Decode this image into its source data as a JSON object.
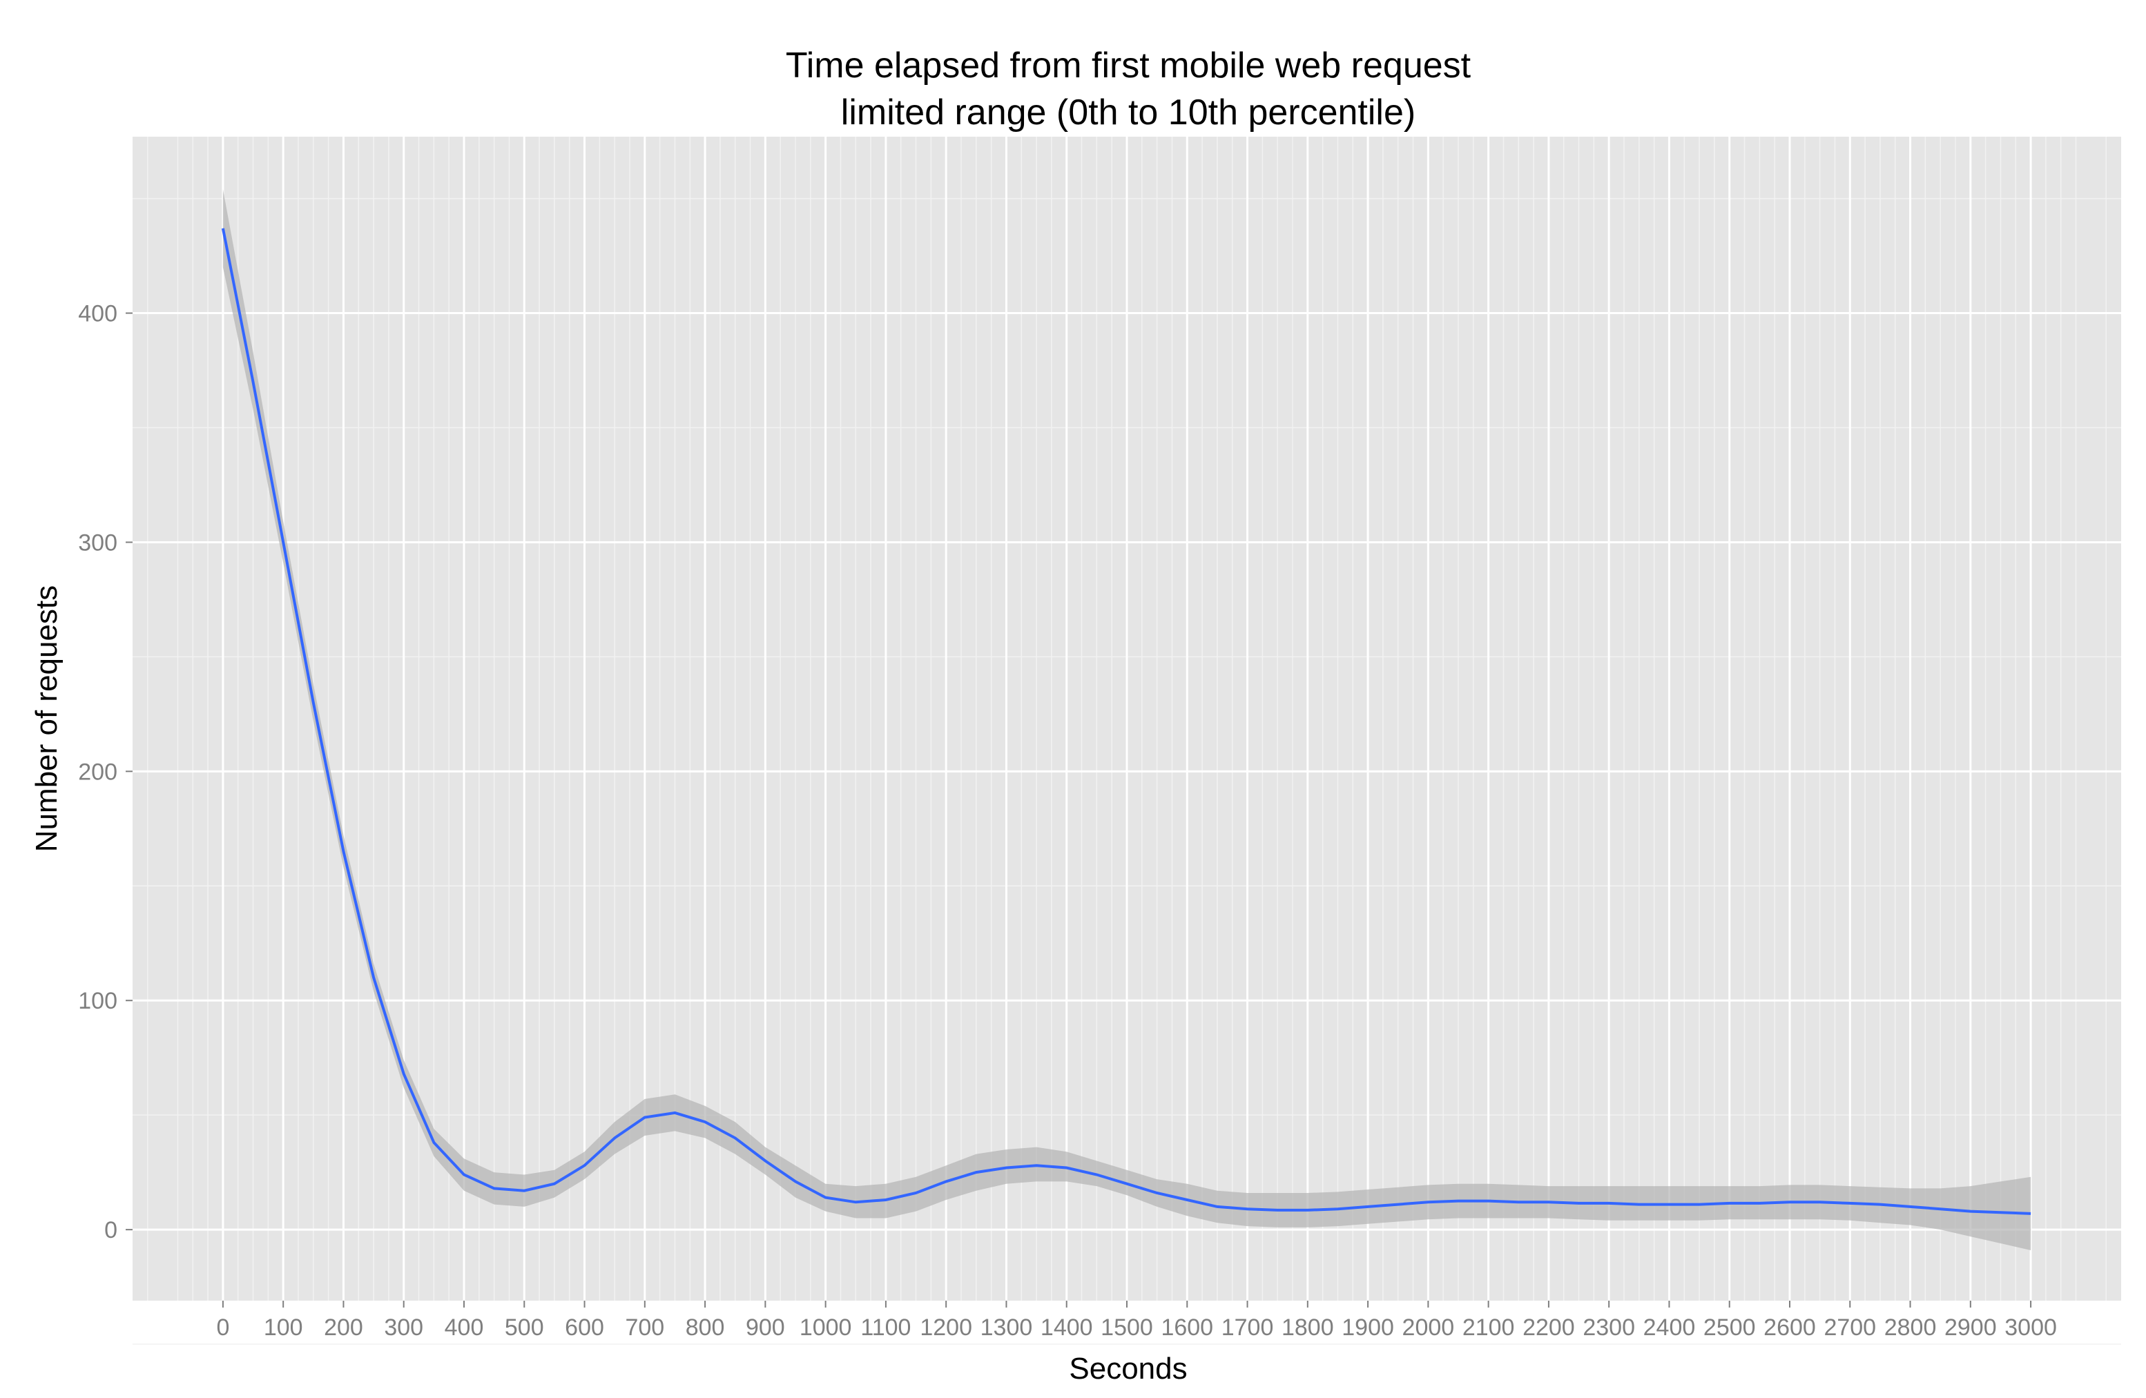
{
  "chart_data": {
    "type": "line",
    "title": "Time elapsed from first mobile web request",
    "subtitle": "limited range (0th to 10th percentile)",
    "xlabel": "Seconds",
    "ylabel": "Number of requests",
    "xlim": [
      -150,
      3150
    ],
    "ylim": [
      -31,
      477
    ],
    "x_ticks": [
      0,
      100,
      200,
      300,
      400,
      500,
      600,
      700,
      800,
      900,
      1000,
      1100,
      1200,
      1300,
      1400,
      1500,
      1600,
      1700,
      1800,
      1900,
      2000,
      2100,
      2200,
      2300,
      2400,
      2500,
      2600,
      2700,
      2800,
      2900,
      3000
    ],
    "x_tick_labels": [
      "0",
      "100",
      "200",
      "300",
      "400",
      "500",
      "600",
      "700",
      "800",
      "900",
      "1000",
      "1100",
      "1200",
      "1300",
      "1400",
      "1500",
      "1600",
      "1700",
      "1800",
      "1900",
      "2000",
      "2100",
      "2200",
      "2300",
      "2400",
      "2500",
      "2600",
      "2700",
      "2800",
      "2900",
      "3000"
    ],
    "y_ticks": [
      0,
      100,
      200,
      300,
      400
    ],
    "y_tick_labels": [
      "0",
      "100",
      "200",
      "300",
      "400"
    ],
    "grid": true,
    "colors": {
      "panel": "#e5e5e5",
      "grid": "#ffffff",
      "line": "#3366ff",
      "band": "#b3b3b3"
    },
    "series": [
      {
        "x": [
          0,
          50,
          100,
          150,
          200,
          250,
          300,
          350,
          400,
          450,
          500,
          550,
          600,
          650,
          700,
          750,
          800,
          850,
          900,
          950,
          1000,
          1050,
          1100,
          1150,
          1200,
          1250,
          1300,
          1350,
          1400,
          1450,
          1500,
          1550,
          1600,
          1650,
          1700,
          1750,
          1800,
          1850,
          1900,
          1950,
          2000,
          2050,
          2100,
          2150,
          2200,
          2250,
          2300,
          2350,
          2400,
          2450,
          2500,
          2550,
          2600,
          2650,
          2700,
          2750,
          2800,
          2850,
          2900,
          2950,
          3000
        ],
        "y": [
          437,
          370,
          300,
          230,
          165,
          110,
          68,
          38,
          24,
          18,
          17,
          20,
          28,
          40,
          49,
          51,
          47,
          40,
          30,
          21,
          14,
          12,
          13,
          16,
          21,
          25,
          27,
          28,
          27,
          24,
          20,
          16,
          13,
          10,
          9,
          8.5,
          8.5,
          9,
          10,
          11,
          12,
          12.5,
          12.5,
          12,
          12,
          11.5,
          11.5,
          11,
          11,
          11,
          11.5,
          11.5,
          12,
          12,
          11.5,
          11,
          10,
          9,
          8,
          7.5,
          7
        ],
        "lower": [
          420,
          358,
          291,
          222,
          158,
          104,
          62,
          32,
          17,
          11,
          10,
          14,
          22,
          33,
          41,
          43,
          40,
          33,
          24,
          14,
          8,
          5,
          5,
          8,
          13,
          17,
          20,
          21,
          21,
          19,
          15,
          10,
          6,
          3,
          1.5,
          1,
          1,
          1.5,
          2.5,
          3.5,
          4.5,
          5,
          5,
          5,
          5,
          4.5,
          4,
          4,
          4,
          4,
          4.5,
          4.5,
          4.5,
          4.5,
          4,
          3,
          2,
          0,
          -3,
          -6,
          -9
        ],
        "upper": [
          454,
          383,
          309,
          238,
          172,
          116,
          74,
          44,
          31,
          25,
          24,
          26,
          34,
          47,
          57,
          59,
          54,
          47,
          36,
          28,
          20,
          19,
          20,
          23,
          28,
          33,
          35,
          36,
          34,
          30,
          26,
          22,
          20,
          17,
          16,
          16,
          16,
          16.5,
          17.5,
          18.5,
          19.5,
          20,
          20,
          19.5,
          19,
          19,
          19,
          19,
          19,
          19,
          19,
          19,
          19.5,
          19.5,
          19,
          18.5,
          18,
          18,
          19,
          21,
          23
        ]
      }
    ]
  }
}
